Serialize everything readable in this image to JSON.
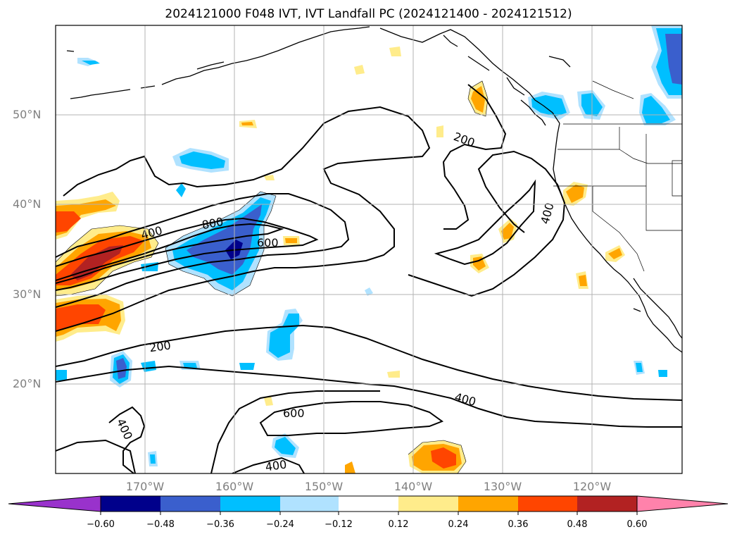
{
  "title": "2024121000 F048 IVT, IVT Landfall PC (2024121400 - 2024121512)",
  "lat_labels": [
    "50°N",
    "40°N",
    "30°N",
    "20°N"
  ],
  "lon_labels": [
    "170°W",
    "160°W",
    "150°W",
    "140°W",
    "130°W",
    "120°W"
  ],
  "contour_labels": [
    "200",
    "400",
    "800",
    "600",
    "400",
    "200",
    "400",
    "600",
    "400",
    "400"
  ],
  "colorbar": {
    "tick_labels": [
      "−0.60",
      "−0.48",
      "−0.36",
      "−0.24",
      "−0.12",
      "0.12",
      "0.24",
      "0.36",
      "0.48",
      "0.60"
    ],
    "colors": [
      "#9932cc",
      "#00008b",
      "#3a5fcd",
      "#00bfff",
      "#b0e2ff",
      "#ffffff",
      "#ffec8b",
      "#ffa500",
      "#ff4500",
      "#b22222",
      "#ff82ab"
    ]
  },
  "palette": {
    "ocean": "#ffffff",
    "grid": "#b3b3b3",
    "contour": "#000000",
    "axis_label": "#7f7f7f"
  }
}
